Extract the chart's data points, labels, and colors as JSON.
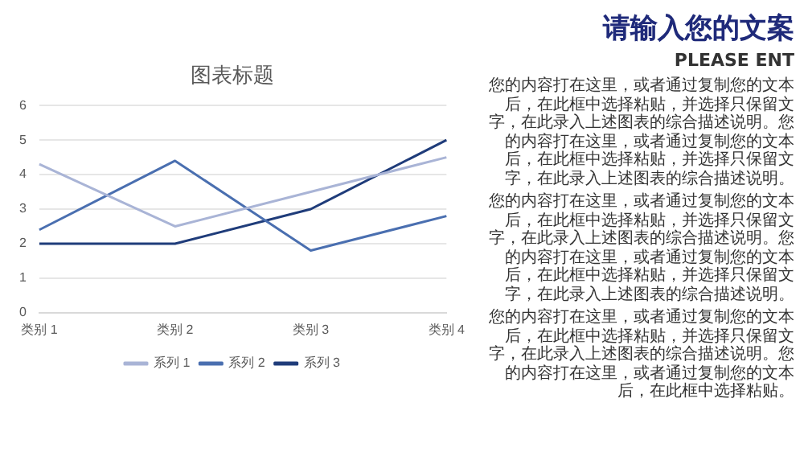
{
  "chart_data": [
    {
      "type": "line",
      "title": "图表标题",
      "categories": [
        "类别 1",
        "类别 2",
        "类别 3",
        "类别 4"
      ],
      "series": [
        {
          "name": "系列 1",
          "color": "#a9b4d6",
          "values": [
            4.3,
            2.5,
            3.5,
            4.5
          ]
        },
        {
          "name": "系列 2",
          "color": "#4a6fb0",
          "values": [
            2.4,
            4.4,
            1.8,
            2.8
          ]
        },
        {
          "name": "系列 3",
          "color": "#1f3c7a",
          "values": [
            2,
            2,
            3,
            5
          ]
        }
      ],
      "ylim": [
        0,
        6
      ],
      "yticks": [
        0,
        1,
        2,
        3,
        4,
        5,
        6
      ],
      "grid": "y",
      "legend": "bottom",
      "marker": "none",
      "line_style": "solid"
    },
    {
      "type": "other",
      "title": "请输入您的文案",
      "subtitle": "PLEASE ENT",
      "annotations": [
        "您的内容打在这里，或者通过复制您的文本后，在此框中选择粘贴，并选择只保留文字，在此录入上述图表的综合描述说明。您的内容打在这里，或者通过复制您的文本后，在此框中选择粘贴，并选择只保留文字，在此录入上述图表的综合描述说明。",
        "您的内容打在这里，或者通过复制您的文本后，在此框中选择粘贴，并选择只保留文字，在此录入上述图表的综合描述说明。您的内容打在这里，或者通过复制您的文本后，在此框中选择粘贴，并选择只保留文字，在此录入上述图表的综合描述说明。",
        "您的内容打在这里，或者通过复制您的文本后，在此框中选择粘贴，并选择只保留文字，在此录入上述图表的综合描述说明。您的内容打在这里，或者通过复制您的文本后，在此框中选择粘贴。"
      ]
    }
  ]
}
